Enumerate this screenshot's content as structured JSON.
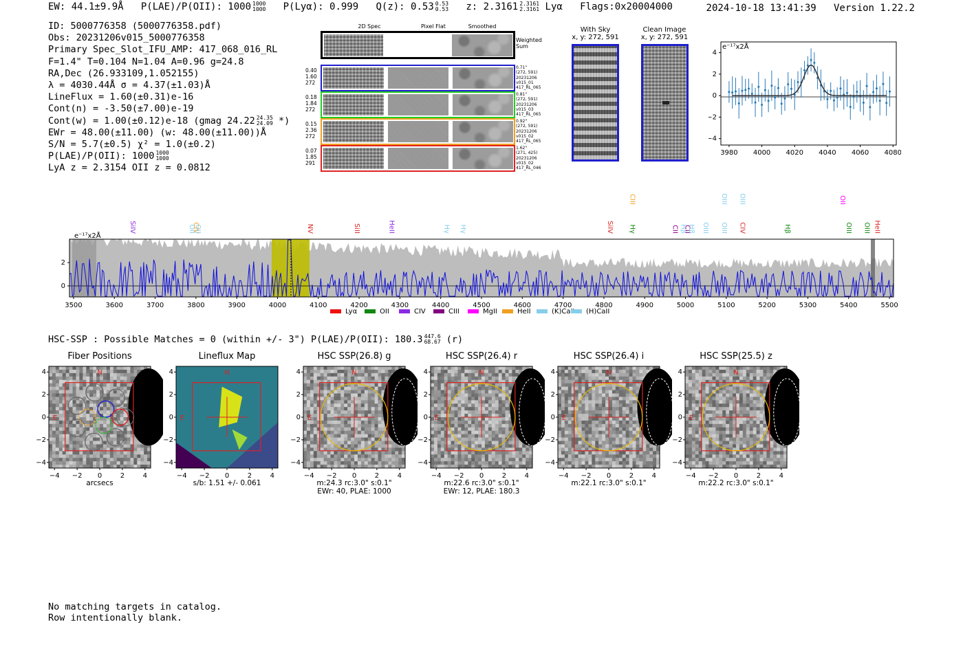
{
  "header": {
    "ew": "EW: 44.1±9.9Å",
    "plae_label": "P(LAE)/P(OII): 1000",
    "plae_hi": "1000",
    "plae_lo": "1000",
    "plya": "P(Lyα): 0.999",
    "qz": "Q(z): 0.53",
    "qz_hi": "0.53",
    "qz_lo": "0.53",
    "z": "z: 2.3161",
    "z_hi": "2.3161",
    "z_lo": "2.3161",
    "line": "Lyα",
    "flags": "Flags:0x20004000",
    "timestamp": "2024-10-18 13:41:39",
    "version": "Version 1.22.2"
  },
  "info": {
    "id": "ID: 5000776358 (5000776358.pdf)",
    "obs": "Obs: 20231206v015_5000776358",
    "primary": "Primary Spec_Slot_IFU_AMP: 417_068_016_RL",
    "params": "F=1.4\"  T=0.104  N=1.04  A=0.96  g=24.8",
    "radec": "RA,Dec (26.933109,1.052155)",
    "lambda": "λ = 4030.44Å   σ = 4.37(±1.03)Å",
    "lineflux": "LineFlux = 1.60(±0.31)e-16",
    "cont_n": "Cont(n) = -3.50(±7.00)e-19",
    "cont_w": "Cont(w) = 1.00(±0.12)e-18 (gmag 24.22",
    "cont_w_hi": "24.35",
    "cont_w_lo": "24.09",
    "cont_w_end": "*)",
    "ewr": "EWr = 48.00(±11.00)  (w: 48.00(±11.00))Å",
    "sn": "S/N = 5.7(±0.5)  χ² = 1.0(±0.2)",
    "plae": "P(LAE)/P(OII): 1000",
    "plae_hi": "1000",
    "plae_lo": "1000",
    "lya_z": "LyA z = 2.3154  OII z = 0.0812"
  },
  "fiber_strip": {
    "col_labels": [
      "2D Spec",
      "Pixel Flat",
      "Smoothed"
    ],
    "weighted_sum": "Weighted Sum",
    "rows": [
      {
        "left": [
          "0.40",
          "1.60",
          "272"
        ],
        "right": [
          "0.71\"",
          "(272, 591)",
          "20231206",
          "v015_01",
          "417_RL_065"
        ],
        "color": "#1f1fcc"
      },
      {
        "left": [
          "0.18",
          "1.84",
          "272"
        ],
        "right": [
          "0.81\"",
          "(272, 591)",
          "20231206",
          "v015_03",
          "417_RL_065"
        ],
        "color": "#22cc22"
      },
      {
        "left": [
          "0.15",
          "2.36",
          "272"
        ],
        "right": [
          "0.92\"",
          "(272, 591)",
          "20231206",
          "v015_02",
          "417_RL_065"
        ],
        "color": "#f0a020"
      },
      {
        "left": [
          "0.07",
          "1.85",
          "291"
        ],
        "right": [
          "1.62\"",
          "(271, 425)",
          "20231206",
          "v015_02",
          "417_RL_046"
        ],
        "color": "#dd2222"
      }
    ]
  },
  "cutouts": {
    "with_sky": "With Sky",
    "with_sky_xy": "x, y: 272, 591",
    "clean": "Clean Image",
    "clean_xy": "x, y: 272, 591"
  },
  "zoom_plot": {
    "ylabel": "e⁻¹⁷x2Å",
    "xticks": [
      "3980",
      "4000",
      "4020",
      "4040",
      "4060",
      "4080"
    ],
    "yticks": [
      "4",
      "2",
      "0",
      "−2",
      "−4"
    ]
  },
  "full_spectrum": {
    "ylabel": "e⁻¹⁷x2Å",
    "yticks": [
      "2",
      "0"
    ],
    "xticks": [
      "3500",
      "3600",
      "3700",
      "3800",
      "3900",
      "4000",
      "4100",
      "4200",
      "4300",
      "4400",
      "4500",
      "4600",
      "4700",
      "4800",
      "4900",
      "5000",
      "5100",
      "5200",
      "5300",
      "5400",
      "5500"
    ],
    "line_marks": [
      {
        "label": "SiIV",
        "color": "#8a2be2"
      },
      {
        "label": "OII",
        "color": "#87ceeb"
      },
      {
        "label": "CIV",
        "color": "#f0a020"
      },
      {
        "label": "OII",
        "color": "#87ceeb"
      },
      {
        "label": "NV",
        "color": "#dd2222"
      },
      {
        "label": "SiII",
        "color": "#dd2222"
      },
      {
        "label": "HeII",
        "color": "#8a2be2"
      },
      {
        "label": "Hγ",
        "color": "#87ceeb"
      },
      {
        "label": "Hγ",
        "color": "#87ceeb"
      },
      {
        "label": "SiIV",
        "color": "#dd2222"
      },
      {
        "label": "CIII",
        "color": "#f0a020"
      },
      {
        "label": "Hγ",
        "color": "#118811"
      },
      {
        "label": "CII",
        "color": "#8b008b"
      },
      {
        "label": "Hβ",
        "color": "#87ceeb"
      },
      {
        "label": "CII",
        "color": "#8b008b"
      },
      {
        "label": "Hβ",
        "color": "#87ceeb"
      },
      {
        "label": "OIII",
        "color": "#87ceeb"
      },
      {
        "label": "OIII",
        "color": "#87ceeb"
      },
      {
        "label": "OIII",
        "color": "#87ceeb"
      },
      {
        "label": "OIII",
        "color": "#87ceeb"
      },
      {
        "label": "CIV",
        "color": "#dd2222"
      },
      {
        "label": "Hβ",
        "color": "#118811"
      },
      {
        "label": "OII",
        "color": "#ff00ff"
      },
      {
        "label": "OIII",
        "color": "#118811"
      },
      {
        "label": "OIII",
        "color": "#118811"
      },
      {
        "label": "HeII",
        "color": "#dd2222"
      }
    ],
    "legend": [
      {
        "label": "Lyα",
        "color": "#ee1111"
      },
      {
        "label": "OII",
        "color": "#118811"
      },
      {
        "label": "CIV",
        "color": "#8a2be2"
      },
      {
        "label": "CIII",
        "color": "#800080"
      },
      {
        "label": "MgII",
        "color": "#ff00ff"
      },
      {
        "label": "HeII",
        "color": "#f0a020"
      },
      {
        "label": "(K)CaII",
        "color": "#87ceeb"
      },
      {
        "label": "(H)CaII",
        "color": "#87ceeb"
      }
    ]
  },
  "hsc": {
    "summary": "HSC-SSP : Possible Matches = 0 (within +/- 3\")  P(LAE)/P(OII): 180.3",
    "summary_hi": "447.6",
    "summary_lo": "68.67",
    "summary_end": "(r)",
    "panels": [
      {
        "title": "Fiber Positions",
        "caption1": "arcsecs",
        "caption2": ""
      },
      {
        "title": "Lineflux Map",
        "caption1": "s/b: 1.51 +/- 0.061",
        "caption2": ""
      },
      {
        "title": "HSC SSP(26.8) g",
        "caption1": "m:24.3 rc:3.0\"  s:0.1\"",
        "caption2": "EWr: 40, PLAE: 1000"
      },
      {
        "title": "HSC SSP(26.4) r",
        "caption1": "m:22.6 rc:3.0\"  s:0.1\"",
        "caption2": "EWr: 12, PLAE: 180.3"
      },
      {
        "title": "HSC SSP(26.4) i",
        "caption1": "m:22.1 rc:3.0\"  s:0.1\"",
        "caption2": ""
      },
      {
        "title": "HSC SSP(25.5) z",
        "caption1": "m:22.2 rc:3.0\"  s:0.1\"",
        "caption2": ""
      }
    ],
    "xticks": [
      "−4",
      "−2",
      "0",
      "2",
      "4"
    ],
    "yticks": [
      "4",
      "2",
      "0",
      "−2",
      "−4"
    ],
    "n_label": "N",
    "e_label": "E"
  },
  "notes": {
    "line1": "No matching targets in catalog.",
    "line2": "Row intentionally blank."
  }
}
